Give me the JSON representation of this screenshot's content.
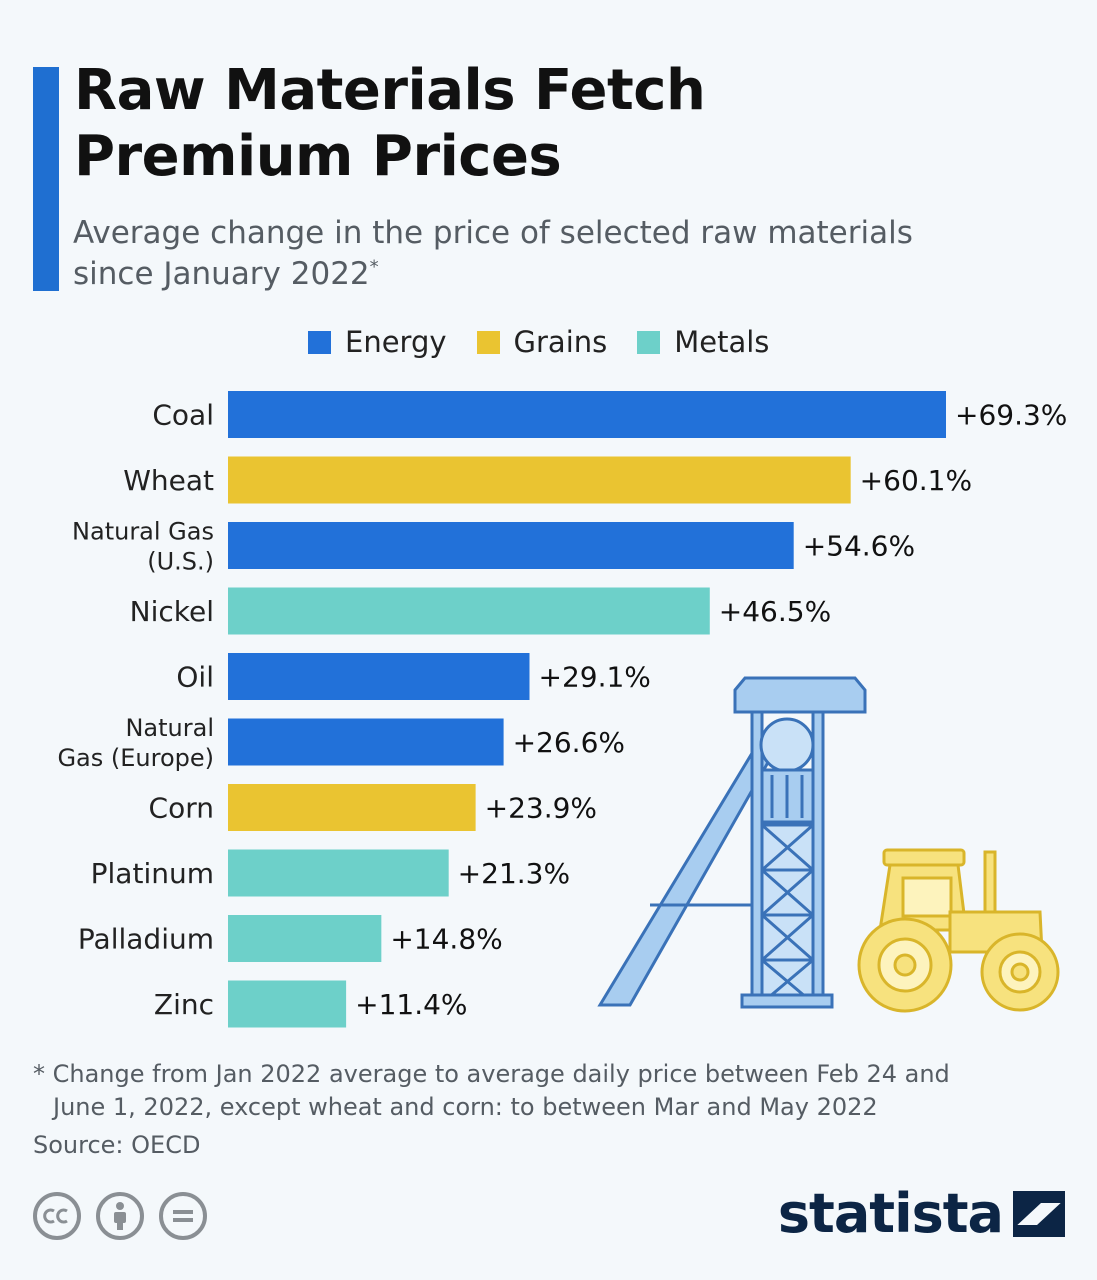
{
  "header": {
    "title_line1": "Raw Materials Fetch",
    "title_line2": "Premium Prices",
    "subtitle_line1": "Average change in the price of selected raw materials",
    "subtitle_line2": "since January 2022",
    "subtitle_marker": "*"
  },
  "colors": {
    "Energy": "#2271d9",
    "Grains": "#eac431",
    "Metals": "#6dd0c9",
    "accent": "#1f6fd1",
    "brand": "#0c2545"
  },
  "chart_data": {
    "type": "bar",
    "orientation": "horizontal",
    "title": "Raw Materials Fetch Premium Prices",
    "subtitle": "Average change in the price of selected raw materials since January 2022*",
    "legend_position": "top",
    "grid": false,
    "legend": [
      "Energy",
      "Grains",
      "Metals"
    ],
    "xlim": [
      0,
      69.3
    ],
    "value_format": "+{v}%",
    "categories": [
      {
        "label": [
          "Coal"
        ],
        "value": 69.3,
        "group": "Energy",
        "value_label": "+69.3%"
      },
      {
        "label": [
          "Wheat"
        ],
        "value": 60.1,
        "group": "Grains",
        "value_label": "+60.1%"
      },
      {
        "label": [
          "Natural Gas",
          "(U.S.)"
        ],
        "value": 54.6,
        "group": "Energy",
        "value_label": "+54.6%"
      },
      {
        "label": [
          "Nickel"
        ],
        "value": 46.5,
        "group": "Metals",
        "value_label": "+46.5%"
      },
      {
        "label": [
          "Oil"
        ],
        "value": 29.1,
        "group": "Energy",
        "value_label": "+29.1%"
      },
      {
        "label": [
          "Natural",
          "Gas (Europe)"
        ],
        "value": 26.6,
        "group": "Energy",
        "value_label": "+26.6%"
      },
      {
        "label": [
          "Corn"
        ],
        "value": 23.9,
        "group": "Grains",
        "value_label": "+23.9%"
      },
      {
        "label": [
          "Platinum"
        ],
        "value": 21.3,
        "group": "Metals",
        "value_label": "+21.3%"
      },
      {
        "label": [
          "Palladium"
        ],
        "value": 14.8,
        "group": "Metals",
        "value_label": "+14.8%"
      },
      {
        "label": [
          "Zinc"
        ],
        "value": 11.4,
        "group": "Metals",
        "value_label": "+11.4%"
      }
    ]
  },
  "footer": {
    "footnote_line1": "* Change from Jan 2022 average to average daily price between Feb 24 and",
    "footnote_line2": "June 1, 2022, except wheat and corn: to between Mar and May 2022",
    "source": "Source: OECD",
    "brand": "statista",
    "license_icons": [
      "cc-icon",
      "attribution-icon",
      "no-derivatives-icon"
    ]
  }
}
